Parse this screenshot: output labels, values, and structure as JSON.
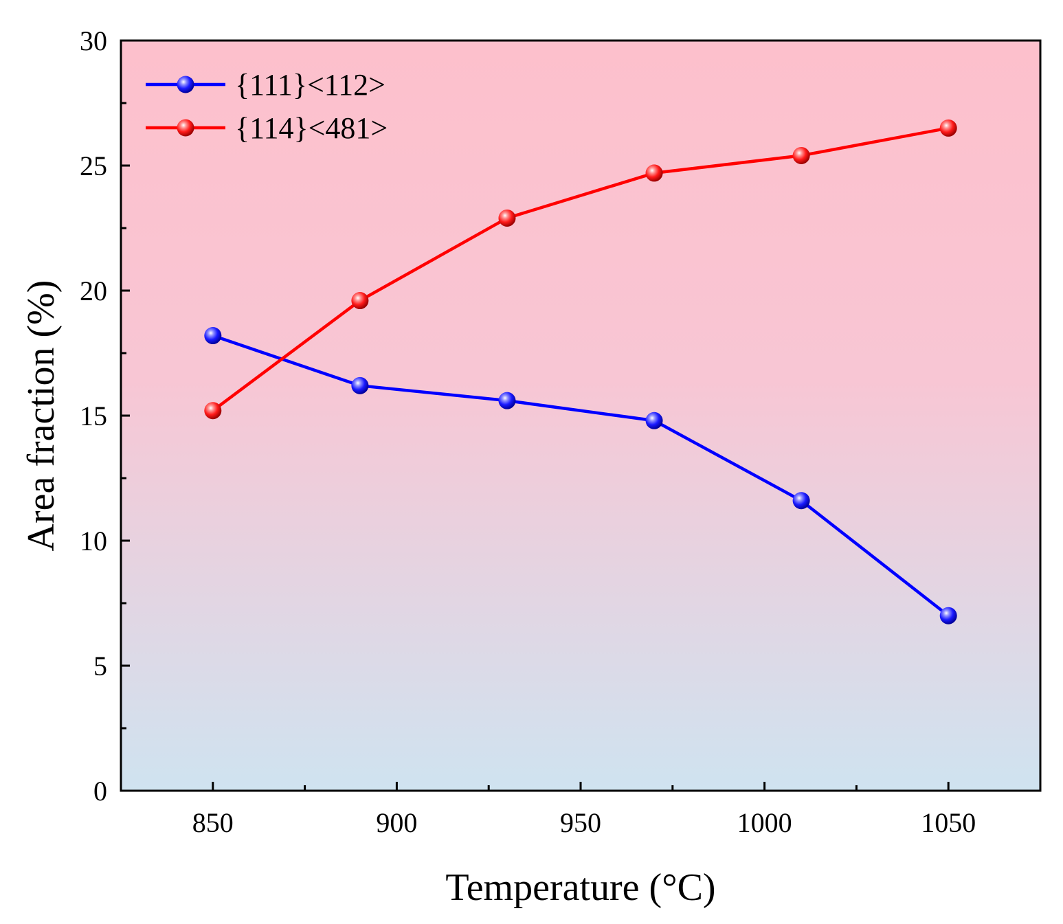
{
  "chart_data": {
    "type": "line",
    "title": "",
    "xlabel": "Temperature (°C)",
    "ylabel": "Area fraction (%)",
    "xlim": [
      825,
      1075
    ],
    "ylim": [
      0,
      30
    ],
    "x_ticks": [
      850,
      900,
      950,
      1000,
      1050
    ],
    "x_minor_ticks": [
      875,
      925,
      975,
      1025
    ],
    "y_ticks": [
      0,
      5,
      10,
      15,
      20,
      25,
      30
    ],
    "y_minor_ticks": [
      2.5,
      7.5,
      12.5,
      17.5,
      22.5,
      27.5
    ],
    "legend_position": "top-left",
    "background_gradient": {
      "top": "#fdc0cc",
      "bottom": "#cfe3f0"
    },
    "series": [
      {
        "name": "{111}<112>",
        "color": "#0000ff",
        "x": [
          850,
          890,
          930,
          970,
          1010,
          1050
        ],
        "values": [
          18.2,
          16.2,
          15.6,
          14.8,
          11.6,
          7.0
        ]
      },
      {
        "name": "{114}<481>",
        "color": "#ff0000",
        "x": [
          850,
          890,
          930,
          970,
          1010,
          1050
        ],
        "values": [
          15.2,
          19.6,
          22.9,
          24.7,
          25.4,
          26.5
        ]
      }
    ]
  }
}
